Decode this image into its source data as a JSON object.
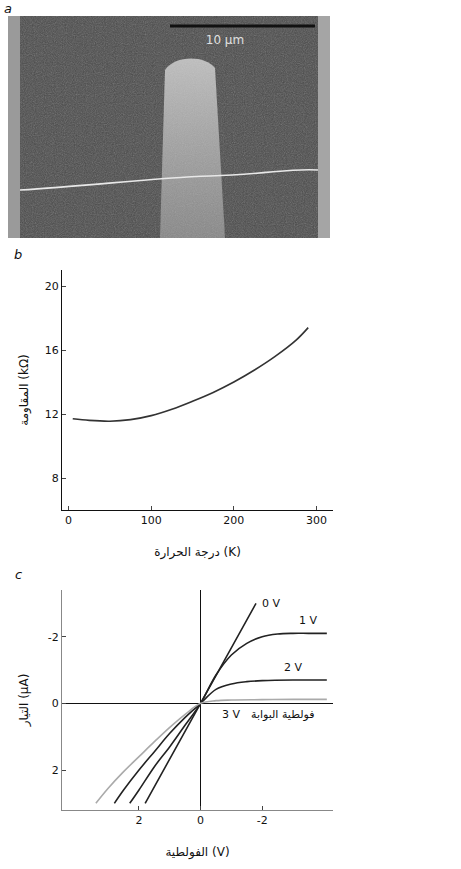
{
  "chart_data": [
    {
      "type": "image",
      "panel": "a",
      "scale_bar_label": "10 μm"
    },
    {
      "type": "line",
      "panel": "b",
      "x_label": "درجة الحرارة (K)",
      "y_label": "المقاومة (kΩ)",
      "x": [
        5,
        25,
        50,
        75,
        100,
        125,
        150,
        175,
        200,
        225,
        250,
        275,
        290
      ],
      "values": [
        11.7,
        11.6,
        11.55,
        11.65,
        11.9,
        12.3,
        12.8,
        13.35,
        14.0,
        14.75,
        15.6,
        16.6,
        17.4
      ],
      "color": "#333333",
      "xlim": [
        -8,
        320
      ],
      "xticks": [
        0,
        100,
        200,
        300
      ],
      "ylim": [
        6,
        21
      ],
      "yticks": [
        8,
        12,
        16,
        20
      ],
      "grid": false
    },
    {
      "type": "line",
      "panel": "c",
      "x_label": "الفولطية (V)",
      "y_label": "التيار (μA)",
      "annotations": [
        {
          "text": "فولطية البوابة"
        }
      ],
      "xlim": [
        4.5,
        -4.3
      ],
      "xticks": [
        2,
        0,
        -2
      ],
      "ylim": [
        3.2,
        -3.4
      ],
      "yticks": [
        -2,
        0,
        2
      ],
      "grid": false,
      "series": [
        {
          "name": "0 V",
          "color": "#222222",
          "x": [
            1.8,
            0,
            -1.8
          ],
          "values": [
            3,
            0,
            -3
          ]
        },
        {
          "name": "1 V",
          "color": "#222222",
          "x": [
            2.3,
            2,
            1.5,
            1,
            0.5,
            0,
            -0.5,
            -1,
            -1.5,
            -2,
            -2.5,
            -3,
            -3.5,
            -4.1
          ],
          "values": [
            3,
            2.6,
            1.9,
            1.3,
            0.65,
            0,
            -0.85,
            -1.45,
            -1.8,
            -2.0,
            -2.08,
            -2.1,
            -2.1,
            -2.1
          ]
        },
        {
          "name": "2 V",
          "color": "#222222",
          "x": [
            2.8,
            2.5,
            2,
            1.5,
            1,
            0.5,
            0,
            -0.5,
            -1,
            -1.5,
            -2,
            -3,
            -4.1
          ],
          "values": [
            3,
            2.6,
            2.0,
            1.45,
            0.9,
            0.42,
            0,
            -0.42,
            -0.58,
            -0.65,
            -0.68,
            -0.7,
            -0.7
          ]
        },
        {
          "name": "3 V",
          "color": "#aaaaaa",
          "x": [
            3.4,
            3,
            2.5,
            2,
            1.5,
            1,
            0.5,
            0,
            -0.5,
            -1,
            -2,
            -3,
            -4.1
          ],
          "values": [
            3,
            2.55,
            2.05,
            1.6,
            1.15,
            0.72,
            0.33,
            0,
            -0.08,
            -0.1,
            -0.11,
            -0.12,
            -0.12
          ]
        }
      ]
    }
  ]
}
